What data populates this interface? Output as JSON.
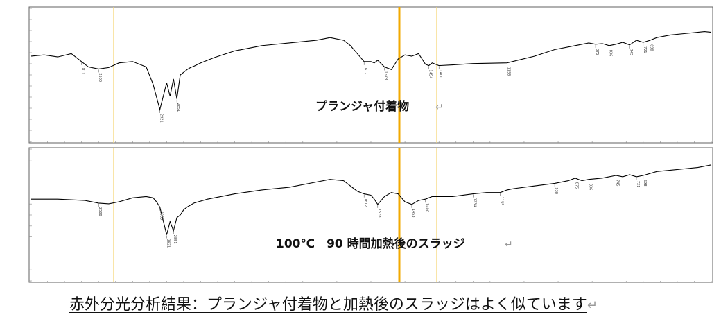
{
  "caption": "赤外分光分析結果：プランジャ付着物と加熱後のスラッジはよく似ています",
  "return_mark": "↵",
  "colors": {
    "spectrum": "#000000",
    "marker_strong": "#f2a900",
    "marker_light": "#f6d77a",
    "frame": "#606060"
  },
  "chart_data": [
    {
      "type": "line",
      "title": "プランジャ付着物",
      "xlim": [
        0,
        1
      ],
      "ylim": [
        0,
        1
      ],
      "grid": false,
      "x": [
        0.0,
        0.02,
        0.04,
        0.06,
        0.075,
        0.085,
        0.1,
        0.115,
        0.13,
        0.15,
        0.17,
        0.18,
        0.19,
        0.2,
        0.205,
        0.21,
        0.215,
        0.22,
        0.225,
        0.23,
        0.235,
        0.24,
        0.25,
        0.27,
        0.3,
        0.34,
        0.38,
        0.42,
        0.44,
        0.46,
        0.47,
        0.48,
        0.49,
        0.5,
        0.505,
        0.51,
        0.52,
        0.53,
        0.54,
        0.55,
        0.56,
        0.57,
        0.58,
        0.585,
        0.59,
        0.6,
        0.62,
        0.65,
        0.7,
        0.74,
        0.77,
        0.8,
        0.82,
        0.83,
        0.84,
        0.85,
        0.86,
        0.87,
        0.88,
        0.89,
        0.9,
        0.91,
        0.92,
        0.94,
        0.96,
        0.98,
        0.99,
        1.0
      ],
      "y": [
        0.64,
        0.65,
        0.635,
        0.66,
        0.6,
        0.56,
        0.545,
        0.555,
        0.59,
        0.6,
        0.56,
        0.43,
        0.24,
        0.44,
        0.34,
        0.47,
        0.32,
        0.5,
        0.52,
        0.54,
        0.555,
        0.565,
        0.59,
        0.63,
        0.68,
        0.72,
        0.74,
        0.76,
        0.78,
        0.76,
        0.72,
        0.66,
        0.6,
        0.6,
        0.59,
        0.61,
        0.56,
        0.54,
        0.62,
        0.65,
        0.64,
        0.66,
        0.58,
        0.57,
        0.59,
        0.57,
        0.575,
        0.585,
        0.59,
        0.64,
        0.69,
        0.72,
        0.74,
        0.73,
        0.735,
        0.72,
        0.73,
        0.745,
        0.725,
        0.76,
        0.745,
        0.76,
        0.78,
        0.8,
        0.81,
        0.82,
        0.825,
        0.82
      ],
      "peak_labels": [
        {
          "x": 0.075,
          "y": 0.6,
          "text": "1811"
        },
        {
          "x": 0.1,
          "y": 0.545,
          "text": "2500"
        },
        {
          "x": 0.19,
          "y": 0.24,
          "text": "2921"
        },
        {
          "x": 0.215,
          "y": 0.32,
          "text": "2851"
        },
        {
          "x": 0.49,
          "y": 0.6,
          "text": "1612"
        },
        {
          "x": 0.52,
          "y": 0.56,
          "text": "1578"
        },
        {
          "x": 0.585,
          "y": 0.57,
          "text": "1454"
        },
        {
          "x": 0.6,
          "y": 0.57,
          "text": "1400"
        },
        {
          "x": 0.7,
          "y": 0.59,
          "text": "1155"
        },
        {
          "x": 0.83,
          "y": 0.73,
          "text": "875"
        },
        {
          "x": 0.85,
          "y": 0.72,
          "text": "836"
        },
        {
          "x": 0.88,
          "y": 0.725,
          "text": "745"
        },
        {
          "x": 0.9,
          "y": 0.745,
          "text": "721"
        },
        {
          "x": 0.91,
          "y": 0.76,
          "text": "698"
        }
      ]
    },
    {
      "type": "line",
      "title": "100℃　90 時間加熱後のスラッジ",
      "xlim": [
        0,
        1
      ],
      "ylim": [
        0,
        1
      ],
      "grid": false,
      "x": [
        0.0,
        0.04,
        0.08,
        0.1,
        0.115,
        0.13,
        0.15,
        0.17,
        0.18,
        0.185,
        0.19,
        0.2,
        0.205,
        0.21,
        0.215,
        0.22,
        0.225,
        0.23,
        0.24,
        0.26,
        0.3,
        0.34,
        0.38,
        0.42,
        0.44,
        0.46,
        0.47,
        0.48,
        0.49,
        0.5,
        0.505,
        0.51,
        0.52,
        0.53,
        0.54,
        0.55,
        0.56,
        0.57,
        0.58,
        0.585,
        0.59,
        0.6,
        0.62,
        0.65,
        0.67,
        0.69,
        0.7,
        0.71,
        0.74,
        0.77,
        0.79,
        0.8,
        0.81,
        0.82,
        0.84,
        0.86,
        0.87,
        0.88,
        0.89,
        0.9,
        0.92,
        0.94,
        0.96,
        0.98,
        1.0
      ],
      "y": [
        0.62,
        0.62,
        0.61,
        0.59,
        0.585,
        0.6,
        0.63,
        0.64,
        0.63,
        0.6,
        0.56,
        0.35,
        0.45,
        0.38,
        0.48,
        0.5,
        0.54,
        0.56,
        0.59,
        0.62,
        0.66,
        0.69,
        0.71,
        0.75,
        0.77,
        0.76,
        0.72,
        0.68,
        0.66,
        0.65,
        0.62,
        0.58,
        0.64,
        0.67,
        0.66,
        0.6,
        0.58,
        0.61,
        0.62,
        0.63,
        0.64,
        0.64,
        0.64,
        0.66,
        0.67,
        0.67,
        0.69,
        0.7,
        0.72,
        0.74,
        0.76,
        0.78,
        0.76,
        0.77,
        0.78,
        0.8,
        0.79,
        0.805,
        0.79,
        0.8,
        0.83,
        0.84,
        0.85,
        0.86,
        0.88
      ],
      "peak_labels": [
        {
          "x": 0.1,
          "y": 0.59,
          "text": "2500"
        },
        {
          "x": 0.19,
          "y": 0.56,
          "text": "2959"
        },
        {
          "x": 0.2,
          "y": 0.35,
          "text": "2921"
        },
        {
          "x": 0.21,
          "y": 0.38,
          "text": "2851"
        },
        {
          "x": 0.49,
          "y": 0.66,
          "text": "1612"
        },
        {
          "x": 0.51,
          "y": 0.58,
          "text": "1578"
        },
        {
          "x": 0.56,
          "y": 0.58,
          "text": "1453"
        },
        {
          "x": 0.58,
          "y": 0.62,
          "text": "1400"
        },
        {
          "x": 0.65,
          "y": 0.66,
          "text": "1234"
        },
        {
          "x": 0.69,
          "y": 0.67,
          "text": "1155"
        },
        {
          "x": 0.77,
          "y": 0.74,
          "text": "938"
        },
        {
          "x": 0.8,
          "y": 0.78,
          "text": "875"
        },
        {
          "x": 0.82,
          "y": 0.77,
          "text": "836"
        },
        {
          "x": 0.86,
          "y": 0.8,
          "text": "745"
        },
        {
          "x": 0.89,
          "y": 0.79,
          "text": "721"
        },
        {
          "x": 0.9,
          "y": 0.8,
          "text": "698"
        }
      ]
    }
  ]
}
